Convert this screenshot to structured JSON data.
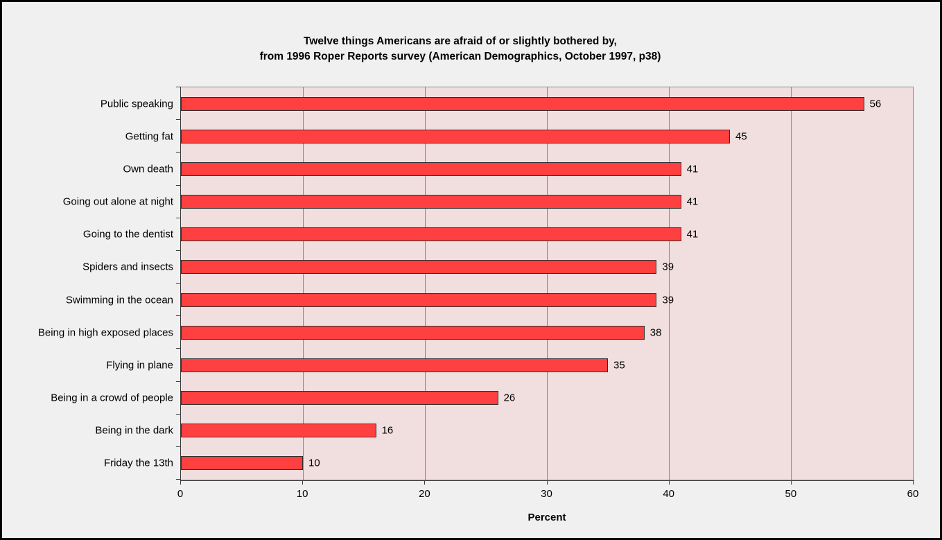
{
  "chart_data": {
    "type": "bar",
    "orientation": "horizontal",
    "title_line1": "Twelve things Americans are afraid of or slightly bothered by,",
    "title_line2": "from 1996 Roper Reports survey (American Demographics, October 1997, p38)",
    "categories": [
      "Public speaking",
      "Getting fat",
      "Own death",
      "Going out alone at night",
      "Going to the dentist",
      "Spiders and insects",
      "Swimming in the ocean",
      "Being in high exposed places",
      "Flying in plane",
      "Being in a crowd of people",
      "Being in the dark",
      "Friday the 13th"
    ],
    "values": [
      56,
      45,
      41,
      41,
      41,
      39,
      39,
      38,
      35,
      26,
      16,
      10
    ],
    "xlabel": "Percent",
    "xlim": [
      0,
      60
    ],
    "x_ticks": [
      0,
      10,
      20,
      30,
      40,
      50,
      60
    ],
    "grid": true,
    "legend": "none",
    "colors": {
      "bar_fill": "#ff4040",
      "bar_outline": "#322d2d",
      "plot_bg": "#f1dede",
      "page_bg": "#f0f0f0",
      "gridline": "#8a8080",
      "axis": "#3a3a3a",
      "plot_border": "#8a8484",
      "frame_border": "#000000"
    }
  }
}
